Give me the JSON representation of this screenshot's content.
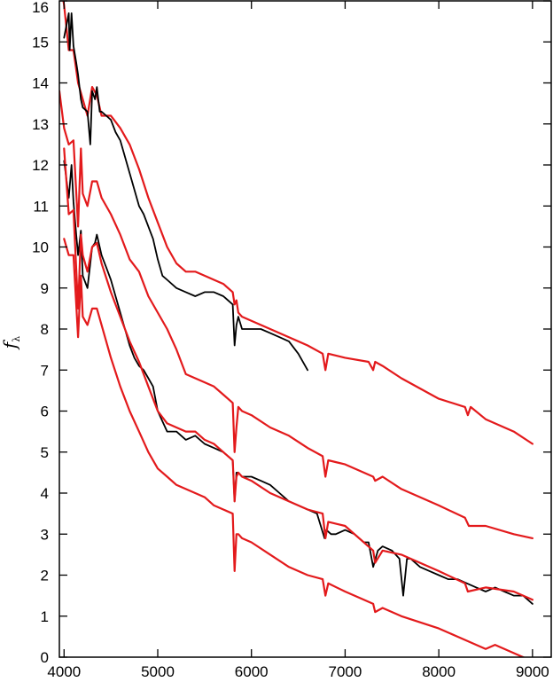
{
  "chart_data": {
    "type": "line",
    "title": "",
    "xlabel": "",
    "ylabel_main": "f",
    "ylabel_sub": "λ",
    "xlim": [
      3950,
      9200
    ],
    "ylim": [
      0,
      16
    ],
    "xticks": [
      4000,
      5000,
      6000,
      7000,
      8000,
      9000
    ],
    "yticks": [
      0,
      1,
      2,
      3,
      4,
      5,
      6,
      7,
      8,
      9,
      10,
      11,
      12,
      13,
      14,
      15,
      16
    ],
    "grid": false,
    "legend": "none",
    "colors": {
      "model": "#e31a1c",
      "observed": "#000000"
    },
    "series": [
      {
        "kind": "model",
        "x": [
          3950,
          4000,
          4050,
          4100,
          4150,
          4200,
          4250,
          4300,
          4350,
          4400,
          4500,
          4600,
          4700,
          4800,
          4900,
          5000,
          5100,
          5200,
          5300,
          5400,
          5500,
          5600,
          5700,
          5800,
          5820,
          5840,
          5860,
          5900,
          6000,
          6200,
          6400,
          6600,
          6760,
          6790,
          6820,
          7000,
          7250,
          7300,
          7320,
          7400,
          7600,
          8000,
          8280,
          8310,
          8340,
          8500,
          8800,
          9000
        ],
        "y": [
          16.6,
          15.9,
          14.8,
          14.8,
          14.0,
          13.6,
          13.2,
          13.9,
          13.7,
          13.2,
          13.2,
          12.9,
          12.5,
          11.9,
          11.2,
          10.6,
          10.0,
          9.6,
          9.4,
          9.4,
          9.3,
          9.2,
          9.1,
          8.9,
          8.6,
          8.7,
          8.4,
          8.3,
          8.2,
          8.0,
          7.8,
          7.6,
          7.4,
          7.0,
          7.4,
          7.3,
          7.2,
          7.0,
          7.2,
          7.1,
          6.8,
          6.3,
          6.1,
          5.9,
          6.1,
          5.8,
          5.5,
          5.2
        ]
      },
      {
        "kind": "observed",
        "x": [
          4000,
          4050,
          4060,
          4080,
          4100,
          4130,
          4150,
          4180,
          4200,
          4250,
          4280,
          4300,
          4330,
          4350,
          4380,
          4400,
          4450,
          4500,
          4550,
          4600,
          4650,
          4700,
          4750,
          4800,
          4850,
          4900,
          4950,
          5000,
          5050,
          5100,
          5200,
          5300,
          5400,
          5500,
          5600,
          5700,
          5800,
          5820,
          5840,
          5860,
          5900,
          6000,
          6100,
          6200,
          6300,
          6400,
          6500,
          6600
        ],
        "y": [
          15.1,
          15.7,
          14.8,
          15.7,
          14.9,
          14.5,
          14.2,
          13.6,
          13.4,
          13.3,
          12.5,
          13.8,
          13.6,
          13.9,
          13.3,
          13.3,
          13.2,
          13.1,
          12.8,
          12.6,
          12.2,
          11.8,
          11.4,
          11.0,
          10.8,
          10.5,
          10.2,
          9.7,
          9.3,
          9.2,
          9.0,
          8.9,
          8.8,
          8.9,
          8.9,
          8.8,
          8.6,
          7.6,
          8.1,
          8.3,
          8.0,
          8.0,
          8.0,
          7.9,
          7.8,
          7.7,
          7.4,
          7.0
        ]
      },
      {
        "kind": "model",
        "x": [
          3950,
          4000,
          4050,
          4100,
          4150,
          4180,
          4200,
          4250,
          4300,
          4350,
          4400,
          4500,
          4600,
          4700,
          4800,
          4900,
          5000,
          5100,
          5200,
          5300,
          5400,
          5500,
          5600,
          5700,
          5800,
          5820,
          5840,
          5860,
          5900,
          6000,
          6200,
          6400,
          6600,
          6760,
          6790,
          6820,
          7000,
          7300,
          7320,
          7400,
          7600,
          8000,
          8280,
          8320,
          8500,
          8800,
          9000
        ],
        "y": [
          13.8,
          12.9,
          12.5,
          12.6,
          10.5,
          12.4,
          11.3,
          11.0,
          11.6,
          11.6,
          11.2,
          10.8,
          10.3,
          9.7,
          9.4,
          8.8,
          8.4,
          8.0,
          7.5,
          6.9,
          6.8,
          6.7,
          6.6,
          6.4,
          6.2,
          5.0,
          5.6,
          6.1,
          6.0,
          5.9,
          5.6,
          5.4,
          5.1,
          4.9,
          4.4,
          4.8,
          4.7,
          4.4,
          4.3,
          4.4,
          4.1,
          3.7,
          3.4,
          3.2,
          3.2,
          3.0,
          2.9
        ]
      },
      {
        "kind": "observed",
        "x": [
          4000,
          4050,
          4080,
          4100,
          4130,
          4150,
          4180,
          4200,
          4250,
          4280,
          4300,
          4330,
          4350,
          4380,
          4400,
          4450,
          4500,
          4550,
          4600,
          4650,
          4700,
          4750,
          4800,
          4850,
          4900,
          4950,
          5000,
          5100,
          5200,
          5300,
          5400,
          5500,
          5600,
          5700,
          5800,
          5820,
          5840,
          5860,
          5900,
          6000,
          6100,
          6200,
          6300,
          6400,
          6500,
          6600,
          6700,
          6780,
          6800,
          6850,
          6900,
          7000,
          7100,
          7200,
          7250,
          7300,
          7350,
          7400,
          7500,
          7580,
          7620,
          7660,
          7700,
          7800,
          7900,
          8000,
          8100,
          8200,
          8300,
          8400,
          8500,
          8600,
          8700,
          8800,
          8900,
          9000
        ],
        "y": [
          12.1,
          11.2,
          12.0,
          11.1,
          10.3,
          9.8,
          10.4,
          9.3,
          9.0,
          9.6,
          10.0,
          10.1,
          10.3,
          10.0,
          9.8,
          9.5,
          9.2,
          8.8,
          8.4,
          8.0,
          7.6,
          7.3,
          7.1,
          7.0,
          6.8,
          6.6,
          6.0,
          5.5,
          5.5,
          5.3,
          5.4,
          5.2,
          5.1,
          5.0,
          4.8,
          3.8,
          4.5,
          4.5,
          4.4,
          4.4,
          4.3,
          4.2,
          4.0,
          3.8,
          3.7,
          3.6,
          3.5,
          2.9,
          3.1,
          3.0,
          3.0,
          3.1,
          3.0,
          2.8,
          2.8,
          2.2,
          2.6,
          2.7,
          2.6,
          2.4,
          1.5,
          2.4,
          2.4,
          2.2,
          2.1,
          2.0,
          1.9,
          1.9,
          1.8,
          1.7,
          1.6,
          1.7,
          1.6,
          1.5,
          1.5,
          1.3
        ]
      },
      {
        "kind": "model",
        "x": [
          4000,
          4050,
          4100,
          4150,
          4180,
          4200,
          4250,
          4300,
          4350,
          4400,
          4500,
          4600,
          4700,
          4800,
          4900,
          5000,
          5100,
          5200,
          5300,
          5400,
          5500,
          5600,
          5700,
          5800,
          5820,
          5840,
          5860,
          5900,
          6000,
          6200,
          6400,
          6600,
          6760,
          6790,
          6820,
          7000,
          7300,
          7320,
          7400,
          7600,
          8000,
          8280,
          8310,
          8500,
          8800,
          9000
        ],
        "y": [
          12.4,
          10.8,
          10.9,
          8.5,
          10.3,
          9.8,
          9.4,
          10.0,
          10.1,
          9.6,
          8.9,
          8.3,
          7.7,
          7.2,
          6.6,
          6.0,
          5.7,
          5.6,
          5.5,
          5.5,
          5.3,
          5.2,
          5.0,
          4.8,
          3.8,
          4.4,
          4.5,
          4.4,
          4.3,
          4.0,
          3.8,
          3.6,
          3.5,
          2.9,
          3.3,
          3.2,
          2.6,
          2.3,
          2.6,
          2.5,
          2.1,
          1.8,
          1.6,
          1.7,
          1.6,
          1.4
        ]
      },
      {
        "kind": "model",
        "x": [
          4000,
          4050,
          4100,
          4150,
          4180,
          4200,
          4250,
          4300,
          4350,
          4400,
          4500,
          4600,
          4700,
          4800,
          4900,
          5000,
          5100,
          5200,
          5300,
          5400,
          5500,
          5600,
          5700,
          5800,
          5820,
          5840,
          5860,
          5900,
          6000,
          6200,
          6400,
          6600,
          6760,
          6790,
          6820,
          7000,
          7200,
          7300,
          7320,
          7400,
          7600,
          8000,
          8200,
          8400,
          8500,
          8600,
          8800,
          9000
        ],
        "y": [
          10.2,
          9.8,
          9.8,
          7.8,
          9.3,
          8.3,
          8.1,
          8.5,
          8.5,
          8.1,
          7.3,
          6.6,
          6.0,
          5.5,
          5.0,
          4.6,
          4.4,
          4.2,
          4.1,
          4.0,
          3.9,
          3.7,
          3.6,
          3.5,
          2.1,
          3.0,
          3.0,
          2.9,
          2.8,
          2.5,
          2.2,
          2.0,
          1.9,
          1.5,
          1.8,
          1.6,
          1.4,
          1.3,
          1.1,
          1.2,
          1.0,
          0.7,
          0.5,
          0.3,
          0.2,
          0.3,
          0.1,
          -0.1
        ]
      }
    ]
  }
}
